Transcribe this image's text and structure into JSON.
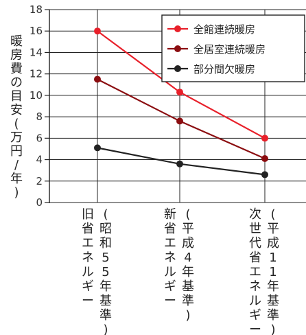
{
  "chart_data": {
    "type": "line",
    "ylabel": "暖房費の目安(万円/年)",
    "ylim": [
      0,
      18
    ],
    "yticks": [
      "0",
      "2",
      "4",
      "6",
      "8",
      "10",
      "12",
      "14",
      "16",
      "18"
    ],
    "categories": [
      {
        "main": "旧省エネルギー",
        "sub": "(昭和55年基準)"
      },
      {
        "main": "新省エネルギー",
        "sub": "(平成4年基準)"
      },
      {
        "main": "次世代省エネルギー",
        "sub": "(平成11年基準)"
      }
    ],
    "series": [
      {
        "name": "全館連続暖房",
        "color": "#e8202a",
        "values": [
          16,
          10.3,
          6
        ]
      },
      {
        "name": "全居室連続暖房",
        "color": "#8b0d10",
        "values": [
          11.5,
          7.6,
          4.1
        ]
      },
      {
        "name": "部分間欠暖房",
        "color": "#222222",
        "values": [
          5.1,
          3.6,
          2.6
        ]
      }
    ],
    "grid": true,
    "legend_position": "top-right"
  }
}
